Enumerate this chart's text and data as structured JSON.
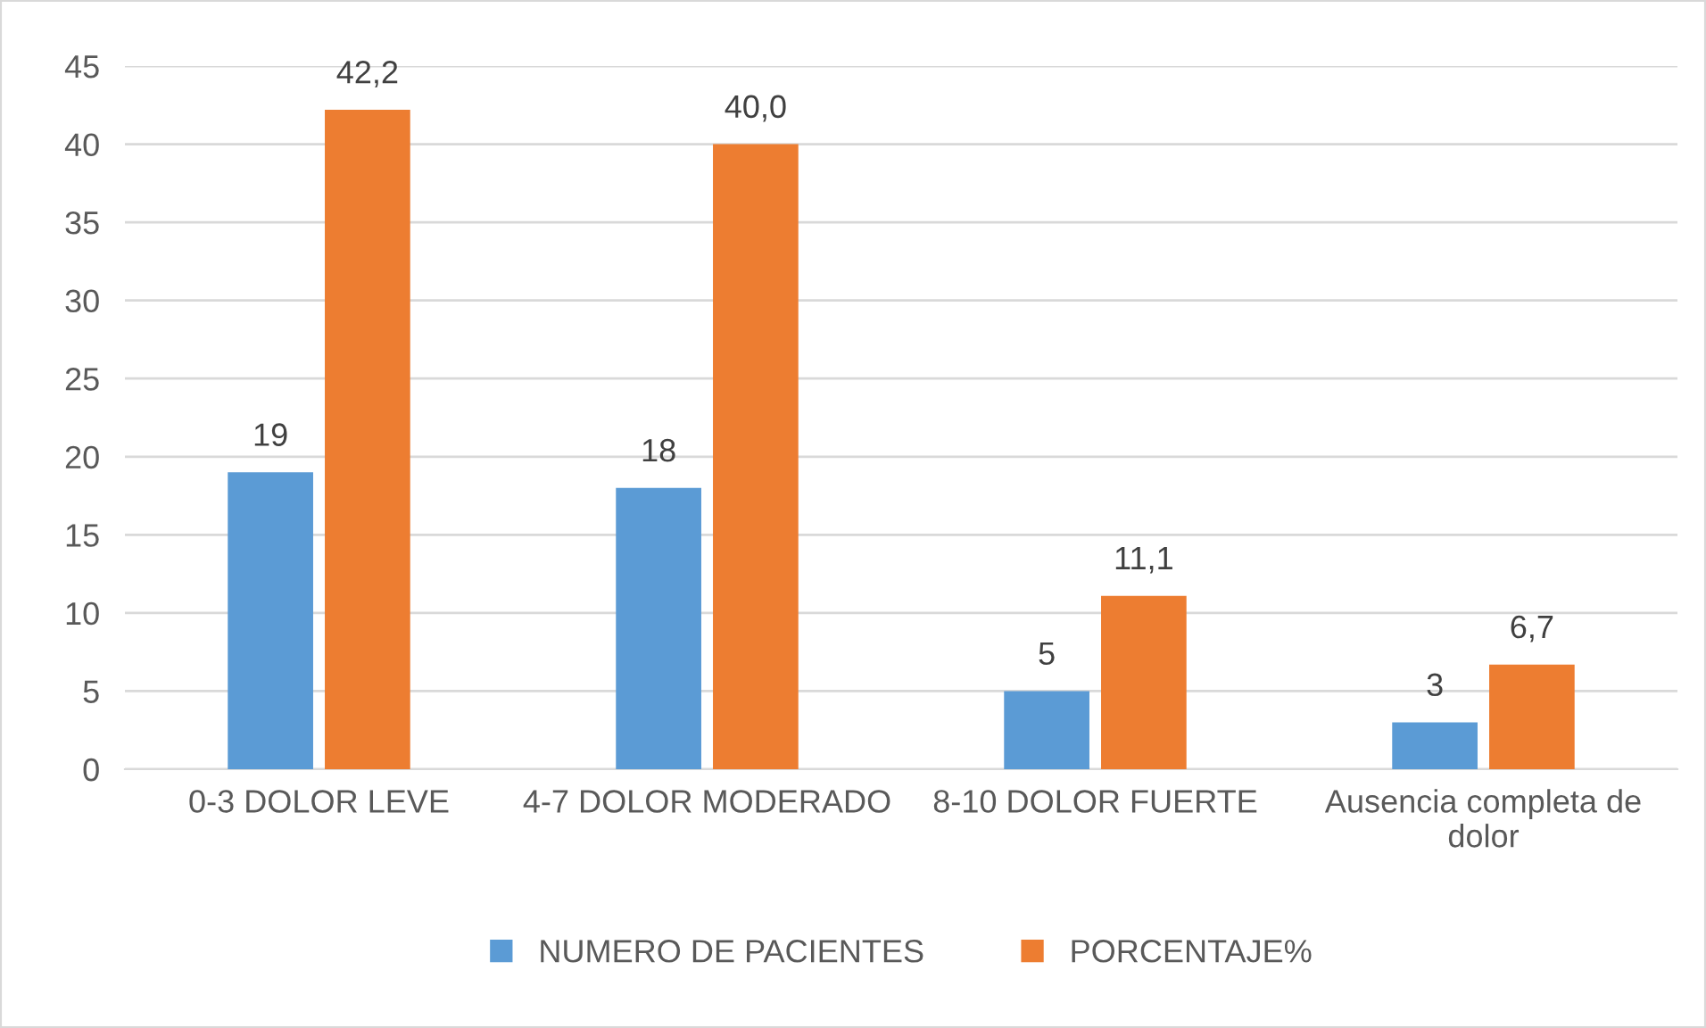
{
  "chart_data": {
    "type": "bar",
    "categories": [
      "0-3 DOLOR LEVE",
      "4-7 DOLOR MODERADO",
      "8-10 DOLOR FUERTE",
      "Ausencia completa de dolor"
    ],
    "series": [
      {
        "name": "NUMERO DE PACIENTES",
        "color": "#5b9bd5",
        "values": [
          19,
          18,
          5,
          3
        ],
        "value_labels": [
          "19",
          "18",
          "5",
          "3"
        ]
      },
      {
        "name": "PORCENTAJE%",
        "color": "#ed7d31",
        "values": [
          42.2,
          40.0,
          11.1,
          6.7
        ],
        "value_labels": [
          "42,2",
          "40,0",
          "11,1",
          "6,7"
        ]
      }
    ],
    "ylim": [
      0,
      45
    ],
    "yticks": [
      0,
      5,
      10,
      15,
      20,
      25,
      30,
      35,
      40,
      45
    ],
    "grid": "y",
    "legend": "bottom"
  }
}
